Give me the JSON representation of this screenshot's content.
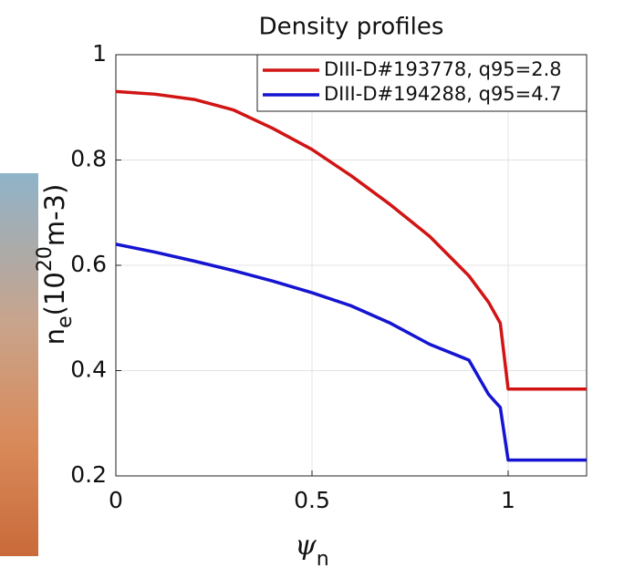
{
  "chart_data": {
    "type": "line",
    "title": "Density profiles",
    "x_label": {
      "symbol": "ψ",
      "subscript": "n"
    },
    "y_label": {
      "symbol": "n",
      "subscript": "e",
      "unit_start": "(10",
      "superscript": "20",
      "unit_end": "m-3)"
    },
    "x": [
      0,
      0.1,
      0.2,
      0.3,
      0.4,
      0.5,
      0.6,
      0.7,
      0.8,
      0.9,
      0.95,
      0.98,
      1.0,
      1.2
    ],
    "series": [
      {
        "name": "DIII-D#193778, q95=2.8",
        "color": "#d11414",
        "values": [
          0.93,
          0.925,
          0.915,
          0.895,
          0.86,
          0.82,
          0.77,
          0.715,
          0.655,
          0.58,
          0.53,
          0.49,
          0.365,
          0.365
        ]
      },
      {
        "name": "DIII-D#194288, q95=4.7",
        "color": "#1414d1",
        "values": [
          0.64,
          0.625,
          0.608,
          0.59,
          0.57,
          0.548,
          0.523,
          0.49,
          0.45,
          0.42,
          0.355,
          0.33,
          0.23,
          0.23
        ]
      }
    ],
    "xlim": [
      0,
      1.2
    ],
    "xticks": [
      0,
      0.5,
      1
    ],
    "ylim": [
      0.2,
      1
    ],
    "yticks": [
      0.2,
      0.4,
      0.6,
      0.8,
      1
    ],
    "grid": true,
    "legend": "top-right"
  }
}
